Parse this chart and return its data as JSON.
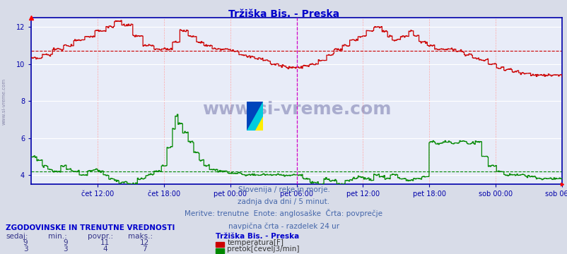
{
  "title": "Tržiška Bis. - Preska",
  "title_color": "#0000cc",
  "bg_color": "#d8dce8",
  "plot_bg_color": "#e8ecf8",
  "grid_color_h": "#ffffff",
  "grid_color_v": "#ffcccc",
  "axis_color": "#0000aa",
  "tick_color": "#0000aa",
  "ylim": [
    3.5,
    12.5
  ],
  "yticks": [
    4,
    6,
    8,
    10,
    12
  ],
  "temp_color": "#cc0000",
  "flow_color": "#008800",
  "temp_avg": 10.7,
  "flow_avg": 4.2,
  "vline_color": "#cc00cc",
  "vline_pos": 0.5,
  "vline_style": "--",
  "x_tick_labels": [
    "čet 12:00",
    "čet 18:00",
    "pet 00:00",
    "pet 06:00",
    "pet 12:00",
    "pet 18:00",
    "sob 00:00",
    "sob 06:00"
  ],
  "x_tick_positions": [
    0.125,
    0.25,
    0.375,
    0.5,
    0.625,
    0.75,
    0.875,
    1.0
  ],
  "watermark": "www.si-vreme.com",
  "watermark_color": "#1a1a6e",
  "subtitle_lines": [
    "Slovenija / reke in morje.",
    "zadnja dva dni / 5 minut.",
    "Meritve: trenutne  Enote: anglosaške  Črta: povprečje",
    "navpična črta - razdelek 24 ur"
  ],
  "subtitle_color": "#4466aa",
  "table_header": "ZGODOVINSKE IN TRENUTNE VREDNOSTI",
  "table_header_color": "#0000cc",
  "col_headers": [
    "sedaj:",
    "min.:",
    "povpr.:",
    "maks.:"
  ],
  "col_header_color": "#333388",
  "row1": [
    "9",
    "9",
    "11",
    "12"
  ],
  "row2": [
    "3",
    "3",
    "4",
    "7"
  ],
  "row_color": "#333388",
  "legend_title": "Tržiška Bis. - Preska",
  "legend_title_color": "#0000cc",
  "legend_temp": "temperatura[F]",
  "legend_flow": "pretok[čevelj3/min]",
  "legend_color": "#333333"
}
